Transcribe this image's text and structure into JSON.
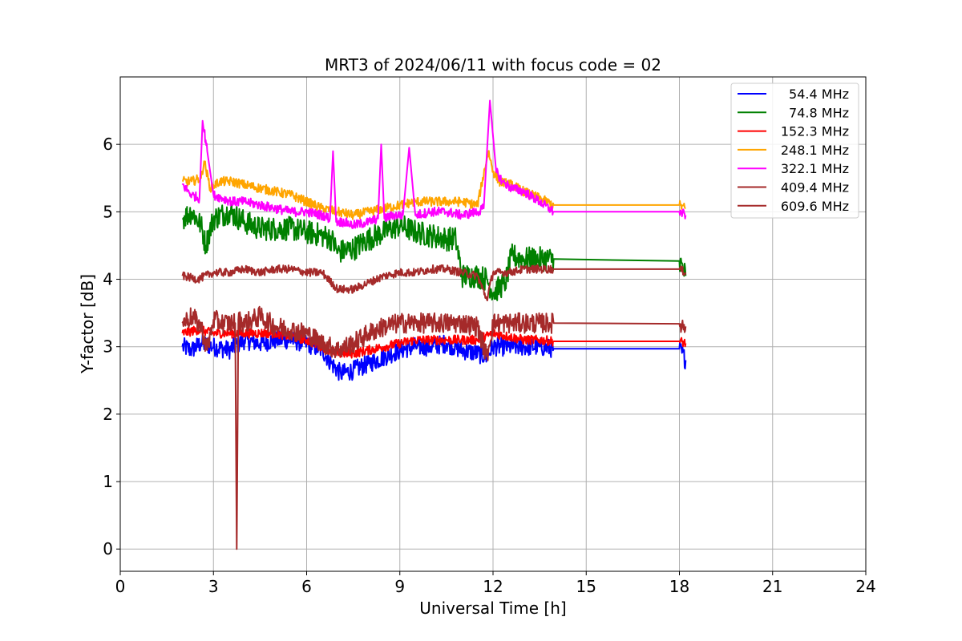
{
  "chart_data": {
    "type": "line",
    "title": "MRT3 of 2024/06/11 with focus code = 02",
    "xlabel": "Universal Time [h]",
    "ylabel": "Y-factor [dB]",
    "xlim": [
      0,
      24
    ],
    "ylim": [
      -0.33,
      7.0
    ],
    "xticks": [
      0,
      3,
      6,
      9,
      12,
      15,
      18,
      21,
      24
    ],
    "yticks": [
      0,
      1,
      2,
      3,
      4,
      5,
      6
    ],
    "grid": true,
    "legend_position": "top-right",
    "series": [
      {
        "name": "54.4 MHz",
        "color": "#0000ff",
        "noise": 0.14,
        "x": [
          2.0,
          2.3,
          2.6,
          3.0,
          3.5,
          4.0,
          4.5,
          5.0,
          5.5,
          6.0,
          6.5,
          6.8,
          7.1,
          7.5,
          8.0,
          8.5,
          9.0,
          9.5,
          10.0,
          10.5,
          11.0,
          11.5,
          11.8,
          12.0,
          12.5,
          13.0,
          13.5,
          13.95,
          18.0,
          18.2
        ],
        "y": [
          3.0,
          2.95,
          3.05,
          3.0,
          2.95,
          3.1,
          3.05,
          3.1,
          3.1,
          3.05,
          2.95,
          2.75,
          2.6,
          2.65,
          2.75,
          2.85,
          2.95,
          3.0,
          3.0,
          3.05,
          2.95,
          2.9,
          2.85,
          3.0,
          3.0,
          3.0,
          3.0,
          2.97,
          2.97,
          2.8
        ]
      },
      {
        "name": "74.8 MHz",
        "color": "#008000",
        "noise": 0.18,
        "x": [
          2.0,
          2.3,
          2.6,
          2.75,
          3.0,
          3.5,
          4.0,
          4.5,
          5.0,
          5.5,
          6.0,
          6.5,
          6.8,
          7.0,
          7.5,
          8.0,
          8.5,
          9.0,
          9.5,
          10.0,
          10.5,
          10.8,
          11.0,
          11.5,
          11.8,
          12.0,
          12.4,
          12.6,
          13.0,
          13.5,
          13.95,
          18.0,
          18.2
        ],
        "y": [
          4.9,
          5.0,
          4.8,
          4.5,
          4.9,
          5.0,
          4.85,
          4.75,
          4.75,
          4.75,
          4.7,
          4.65,
          4.6,
          4.4,
          4.45,
          4.6,
          4.7,
          4.8,
          4.7,
          4.65,
          4.6,
          4.6,
          4.05,
          4.05,
          4.0,
          3.8,
          3.95,
          4.35,
          4.3,
          4.3,
          4.3,
          4.27,
          4.05
        ]
      },
      {
        "name": "152.3 MHz",
        "color": "#ff0000",
        "noise": 0.07,
        "x": [
          2.0,
          2.5,
          3.0,
          3.5,
          4.0,
          4.5,
          5.0,
          5.5,
          6.0,
          6.5,
          7.0,
          7.5,
          8.0,
          8.5,
          9.0,
          9.5,
          10.0,
          10.5,
          11.0,
          11.5,
          12.0,
          12.5,
          13.0,
          13.5,
          13.95,
          18.0,
          18.2
        ],
        "y": [
          3.2,
          3.25,
          3.2,
          3.2,
          3.2,
          3.2,
          3.2,
          3.15,
          3.1,
          3.0,
          2.9,
          2.9,
          2.95,
          3.0,
          3.05,
          3.1,
          3.1,
          3.1,
          3.1,
          3.1,
          3.2,
          3.15,
          3.1,
          3.1,
          3.08,
          3.08,
          3.05
        ]
      },
      {
        "name": "248.1 MHz",
        "color": "#ffa500",
        "noise": 0.07,
        "x": [
          2.0,
          2.3,
          2.6,
          2.7,
          2.9,
          3.2,
          3.6,
          4.0,
          4.5,
          5.0,
          5.5,
          6.0,
          6.5,
          7.0,
          7.5,
          8.0,
          8.5,
          9.0,
          9.5,
          10.0,
          10.5,
          11.0,
          11.5,
          11.85,
          12.0,
          12.2,
          12.6,
          13.0,
          13.5,
          13.95,
          18.0,
          18.2
        ],
        "y": [
          5.45,
          5.45,
          5.5,
          5.75,
          5.35,
          5.45,
          5.45,
          5.4,
          5.35,
          5.3,
          5.25,
          5.15,
          5.05,
          5.0,
          4.95,
          5.0,
          5.05,
          5.1,
          5.15,
          5.15,
          5.15,
          5.15,
          5.1,
          5.9,
          5.6,
          5.45,
          5.4,
          5.3,
          5.2,
          5.1,
          5.1,
          5.05
        ]
      },
      {
        "name": "322.1 MHz",
        "color": "#ff00ff",
        "noise": 0.07,
        "x": [
          2.0,
          2.3,
          2.55,
          2.65,
          2.8,
          3.0,
          3.3,
          3.6,
          4.0,
          4.5,
          5.0,
          5.5,
          6.0,
          6.5,
          6.75,
          6.85,
          6.95,
          7.2,
          7.5,
          8.0,
          8.3,
          8.4,
          8.5,
          8.8,
          9.1,
          9.3,
          9.5,
          10.0,
          10.5,
          11.0,
          11.5,
          11.7,
          11.9,
          12.1,
          12.3,
          12.6,
          13.0,
          13.5,
          13.95,
          18.0,
          18.2
        ],
        "y": [
          5.4,
          5.25,
          5.2,
          6.35,
          5.9,
          5.25,
          5.2,
          5.15,
          5.15,
          5.1,
          5.05,
          5.0,
          5.0,
          4.95,
          4.9,
          5.9,
          4.85,
          4.85,
          4.8,
          4.85,
          4.9,
          6.0,
          4.9,
          4.95,
          4.95,
          5.95,
          4.95,
          5.0,
          5.0,
          4.95,
          5.0,
          5.05,
          6.65,
          5.6,
          5.45,
          5.35,
          5.3,
          5.15,
          5.0,
          5.0,
          4.95
        ]
      },
      {
        "name": "409.4 MHz",
        "color": "#a52a2a",
        "noise": 0.06,
        "x": [
          2.0,
          2.5,
          3.0,
          3.5,
          4.0,
          4.5,
          5.0,
          5.5,
          6.0,
          6.5,
          7.0,
          7.5,
          8.0,
          8.5,
          9.0,
          9.5,
          10.0,
          10.5,
          11.0,
          11.5,
          11.8,
          12.0,
          12.5,
          13.0,
          13.5,
          13.95,
          18.0,
          18.2
        ],
        "y": [
          4.05,
          4.0,
          4.1,
          4.1,
          4.15,
          4.1,
          4.15,
          4.15,
          4.1,
          4.1,
          3.85,
          3.85,
          3.95,
          4.05,
          4.1,
          4.1,
          4.15,
          4.15,
          4.1,
          4.05,
          3.7,
          4.1,
          4.1,
          4.15,
          4.15,
          4.15,
          4.15,
          4.1
        ]
      },
      {
        "name": "609.6 MHz",
        "color": "#a52a2a",
        "noise": 0.15,
        "x": [
          2.0,
          2.3,
          2.6,
          2.8,
          3.0,
          3.3,
          3.6,
          3.7,
          3.75,
          3.8,
          4.0,
          4.5,
          5.0,
          5.5,
          6.0,
          6.5,
          7.0,
          7.5,
          8.0,
          8.5,
          9.0,
          9.5,
          10.0,
          10.5,
          11.0,
          11.5,
          11.8,
          12.0,
          12.5,
          13.0,
          13.5,
          13.95,
          18.0,
          18.2
        ],
        "y": [
          3.35,
          3.45,
          3.3,
          2.95,
          3.4,
          3.35,
          3.35,
          3.35,
          0.0,
          3.4,
          3.35,
          3.45,
          3.3,
          3.25,
          3.2,
          3.05,
          2.95,
          3.05,
          3.2,
          3.3,
          3.35,
          3.35,
          3.35,
          3.35,
          3.35,
          3.3,
          2.85,
          3.35,
          3.35,
          3.35,
          3.35,
          3.35,
          3.34,
          3.3
        ]
      }
    ]
  }
}
